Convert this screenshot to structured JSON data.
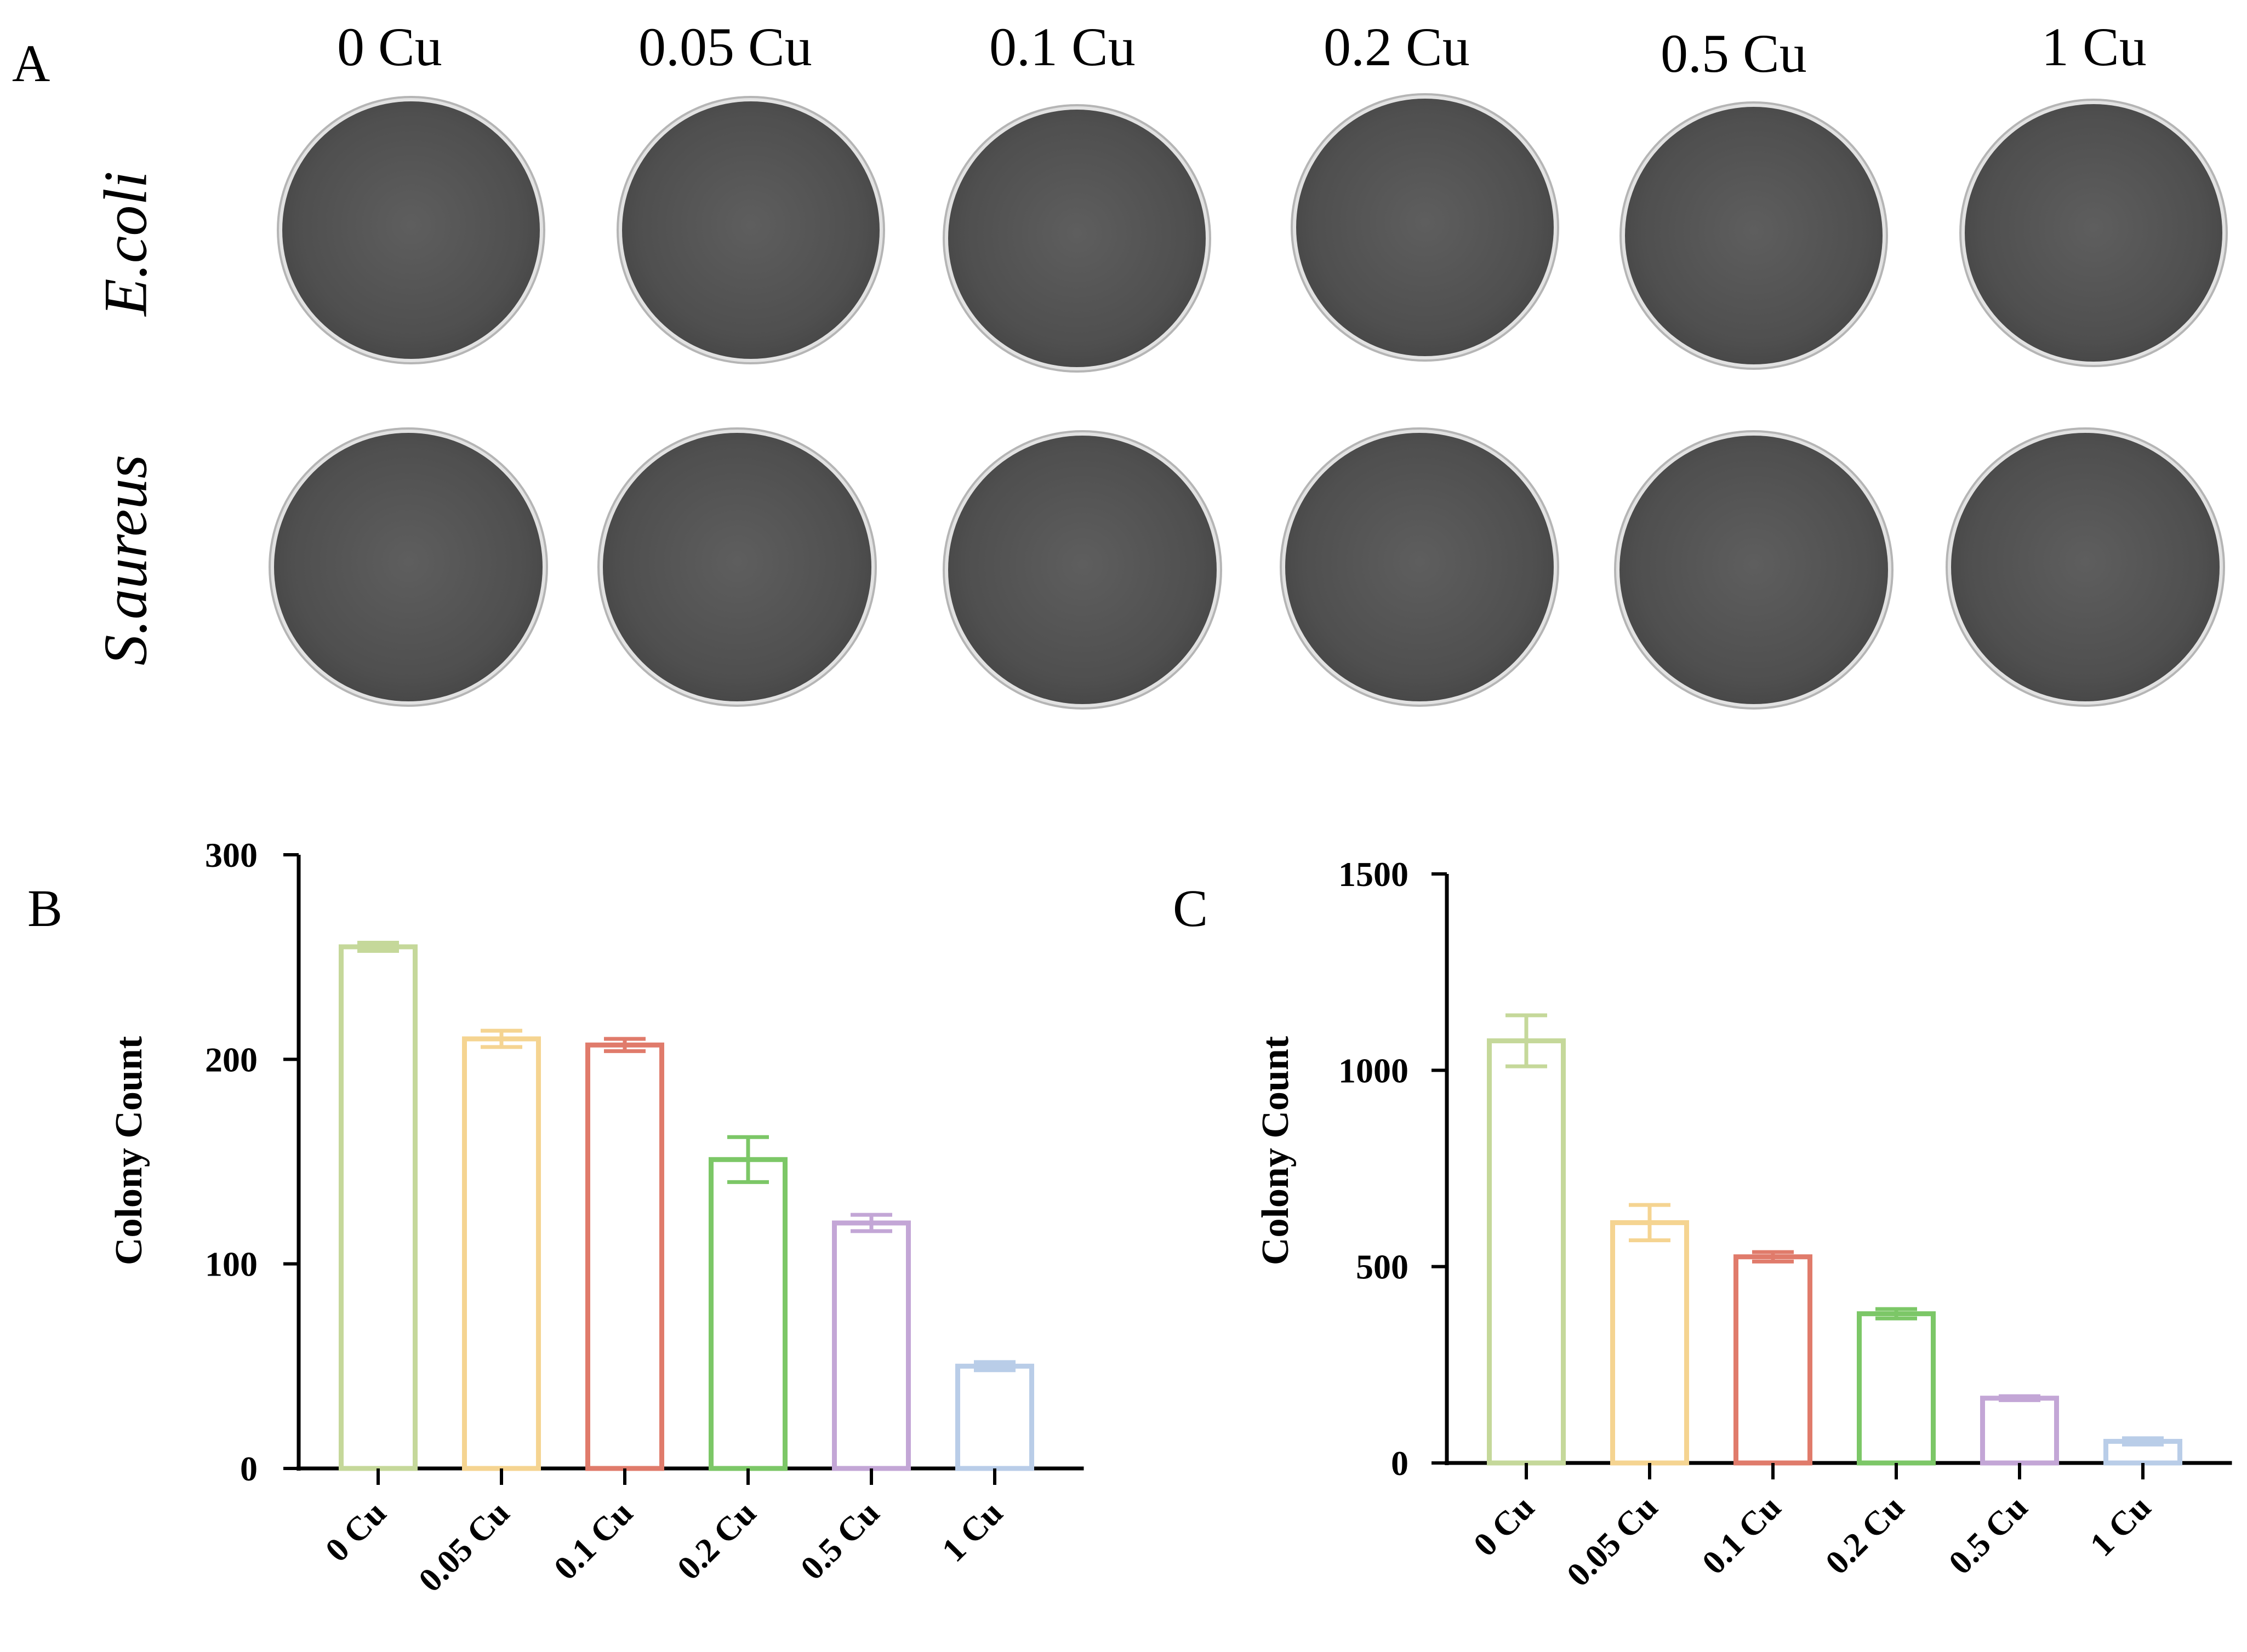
{
  "panel_a": {
    "letter": "A",
    "columns": [
      "0 Cu",
      "0.05 Cu",
      "0.1 Cu",
      "0.2 Cu",
      "0.5 Cu",
      "1 Cu"
    ],
    "rows": [
      "E.coli",
      "S.aureus"
    ]
  },
  "chart_data": [
    {
      "type": "bar",
      "panel": "B",
      "categories": [
        "0 Cu",
        "0.05 Cu",
        "0.1 Cu",
        "0.2 Cu",
        "0.5 Cu",
        "1 Cu"
      ],
      "values": [
        255,
        210,
        207,
        151,
        120,
        50
      ],
      "errors": [
        2,
        4,
        3,
        11,
        4,
        2
      ],
      "colors": [
        "#c5d89a",
        "#f5d491",
        "#e07b6b",
        "#7cc767",
        "#c3a6d6",
        "#b9cde8"
      ],
      "ylabel": "Colony Count",
      "xlabel": "",
      "ylim": [
        0,
        300
      ],
      "yticks": [
        0,
        100,
        200,
        300
      ],
      "grid": false
    },
    {
      "type": "bar",
      "panel": "C",
      "categories": [
        "0 Cu",
        "0.05 Cu",
        "0.1 Cu",
        "0.2 Cu",
        "0.5 Cu",
        "1 Cu"
      ],
      "values": [
        1075,
        612,
        525,
        380,
        165,
        55
      ],
      "errors": [
        65,
        45,
        12,
        12,
        5,
        8
      ],
      "colors": [
        "#c5d89a",
        "#f5d491",
        "#e07b6b",
        "#7cc767",
        "#c3a6d6",
        "#b9cde8"
      ],
      "ylabel": "Colony Count",
      "xlabel": "",
      "ylim": [
        0,
        1500
      ],
      "yticks": [
        0,
        500,
        1000,
        1500
      ],
      "grid": false
    }
  ]
}
